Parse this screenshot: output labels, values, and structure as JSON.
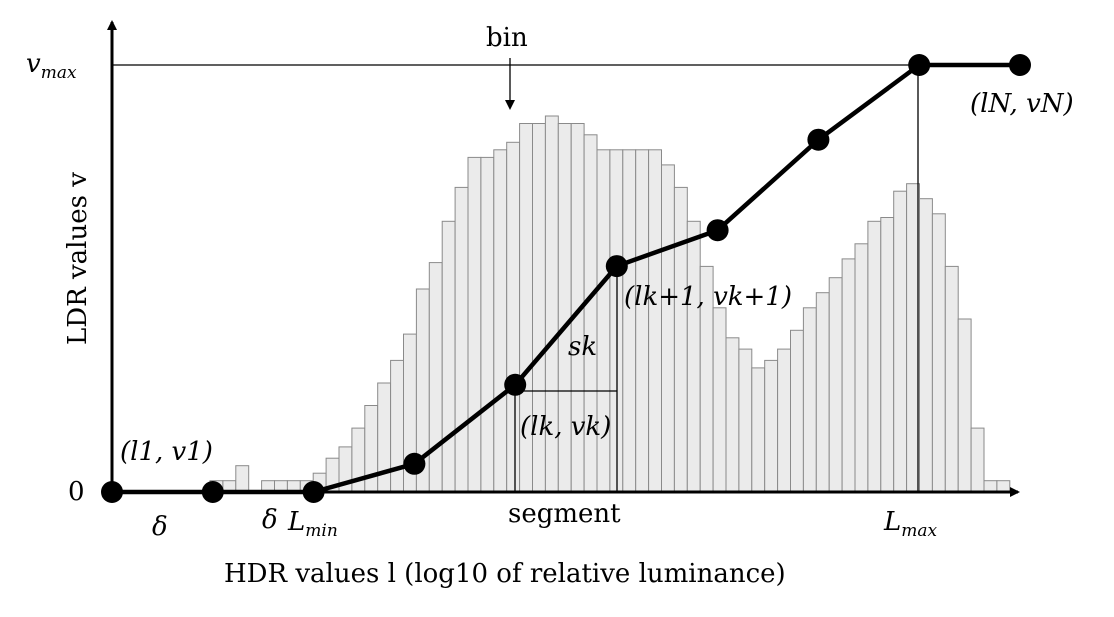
{
  "labels": {
    "vmax": {
      "main": "v",
      "sub": "max"
    },
    "zero": "0",
    "bin": "bin",
    "ylabel": "LDR values v",
    "xlabel": "HDR values l (log10 of relative luminance)",
    "delta_1": "δ",
    "delta_2": "δ",
    "lmin": {
      "main": "L",
      "sub": "min"
    },
    "segment": "segment",
    "lmax": {
      "main": "L",
      "sub": "max"
    },
    "p1": "(l1, v1)",
    "pk": "(lk, vk)",
    "pk1": "(lk+1, vk+1)",
    "pN": "(lN, vN)",
    "sk": "sk"
  },
  "histogram_heights": [
    0.03,
    0.03,
    0.07,
    0.0,
    0.03,
    0.03,
    0.03,
    0.03,
    0.05,
    0.09,
    0.12,
    0.17,
    0.23,
    0.29,
    0.35,
    0.42,
    0.54,
    0.61,
    0.72,
    0.81,
    0.89,
    0.89,
    0.91,
    0.93,
    0.98,
    0.98,
    1.0,
    0.98,
    0.98,
    0.95,
    0.91,
    0.91,
    0.91,
    0.91,
    0.91,
    0.87,
    0.81,
    0.72,
    0.6,
    0.49,
    0.41,
    0.38,
    0.33,
    0.35,
    0.38,
    0.43,
    0.49,
    0.53,
    0.57,
    0.62,
    0.66,
    0.72,
    0.73,
    0.8,
    0.82,
    0.78,
    0.74,
    0.6,
    0.46,
    0.17,
    0.03,
    0.03
  ],
  "curve_points": [
    {
      "l": 0.0,
      "v": 0.0
    },
    {
      "l": 0.111,
      "v": 0.0
    },
    {
      "l": 0.222,
      "v": 0.0
    },
    {
      "l": 0.333,
      "v": 0.066
    },
    {
      "l": 0.444,
      "v": 0.251
    },
    {
      "l": 0.556,
      "v": 0.529
    },
    {
      "l": 0.667,
      "v": 0.613
    },
    {
      "l": 0.778,
      "v": 0.825
    },
    {
      "l": 0.889,
      "v": 1.0
    },
    {
      "l": 1.0,
      "v": 1.0
    }
  ]
}
